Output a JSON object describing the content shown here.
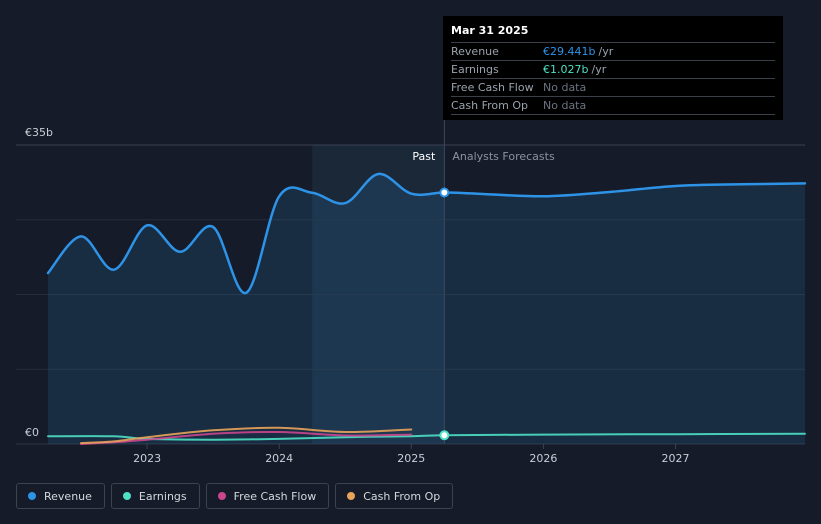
{
  "tooltip": {
    "date": "Mar 31 2025",
    "rows": [
      {
        "label": "Revenue",
        "value": "€29.441b",
        "unit": "/yr"
      },
      {
        "label": "Earnings",
        "value": "€1.027b",
        "unit": "/yr"
      },
      {
        "label": "Free Cash Flow",
        "value": "No data",
        "unit": ""
      },
      {
        "label": "Cash From Op",
        "value": "No data",
        "unit": ""
      }
    ]
  },
  "legend": [
    {
      "label": "Revenue",
      "color": "#2e93e6"
    },
    {
      "label": "Earnings",
      "color": "#4ee0c4"
    },
    {
      "label": "Free Cash Flow",
      "color": "#c9468d"
    },
    {
      "label": "Cash From Op",
      "color": "#e8a35a"
    }
  ],
  "chart_data": {
    "type": "line",
    "y_unit": "€b",
    "ylim": [
      0,
      35
    ],
    "y_tick_labels": [
      {
        "value": 35,
        "label": "€35b"
      },
      {
        "value": 0,
        "label": "€0"
      }
    ],
    "x_tick_labels": [
      "2023",
      "2024",
      "2025",
      "2026",
      "2027"
    ],
    "xlim": [
      2022.25,
      2027.98
    ],
    "past_label": "Past",
    "forecast_label": "Analysts Forecasts",
    "highlight_start": 2024.25,
    "divider_x": 2025.25,
    "grid": true,
    "series": [
      {
        "name": "Revenue",
        "color": "#2e93e6",
        "points": [
          [
            2022.25,
            20.0
          ],
          [
            2022.5,
            24.3
          ],
          [
            2022.75,
            20.4
          ],
          [
            2023.0,
            25.6
          ],
          [
            2023.25,
            22.5
          ],
          [
            2023.5,
            25.4
          ],
          [
            2023.75,
            17.7
          ],
          [
            2024.0,
            29.0
          ],
          [
            2024.25,
            29.4
          ],
          [
            2024.5,
            28.2
          ],
          [
            2024.75,
            31.6
          ],
          [
            2025.0,
            29.3
          ],
          [
            2025.25,
            29.441
          ],
          [
            2025.5,
            29.3
          ],
          [
            2026.0,
            29.0
          ],
          [
            2026.5,
            29.5
          ],
          [
            2027.0,
            30.2
          ],
          [
            2027.5,
            30.4
          ],
          [
            2027.98,
            30.5
          ]
        ]
      },
      {
        "name": "Earnings",
        "color": "#4ee0c4",
        "points": [
          [
            2022.25,
            0.9
          ],
          [
            2022.75,
            0.9
          ],
          [
            2023.0,
            0.6
          ],
          [
            2023.5,
            0.5
          ],
          [
            2024.0,
            0.6
          ],
          [
            2024.5,
            0.8
          ],
          [
            2025.0,
            0.9
          ],
          [
            2025.25,
            1.027
          ],
          [
            2026.0,
            1.1
          ],
          [
            2027.0,
            1.15
          ],
          [
            2027.98,
            1.2
          ]
        ]
      },
      {
        "name": "Free Cash Flow",
        "color": "#c9468d",
        "points": [
          [
            2022.5,
            0.0
          ],
          [
            2022.75,
            0.2
          ],
          [
            2023.0,
            0.5
          ],
          [
            2023.5,
            1.2
          ],
          [
            2024.0,
            1.4
          ],
          [
            2024.5,
            1.0
          ],
          [
            2025.0,
            1.1
          ]
        ]
      },
      {
        "name": "Cash From Op",
        "color": "#e8a35a",
        "points": [
          [
            2022.5,
            0.1
          ],
          [
            2022.75,
            0.3
          ],
          [
            2023.0,
            0.8
          ],
          [
            2023.5,
            1.6
          ],
          [
            2024.0,
            1.9
          ],
          [
            2024.5,
            1.4
          ],
          [
            2025.0,
            1.7
          ]
        ]
      }
    ]
  }
}
